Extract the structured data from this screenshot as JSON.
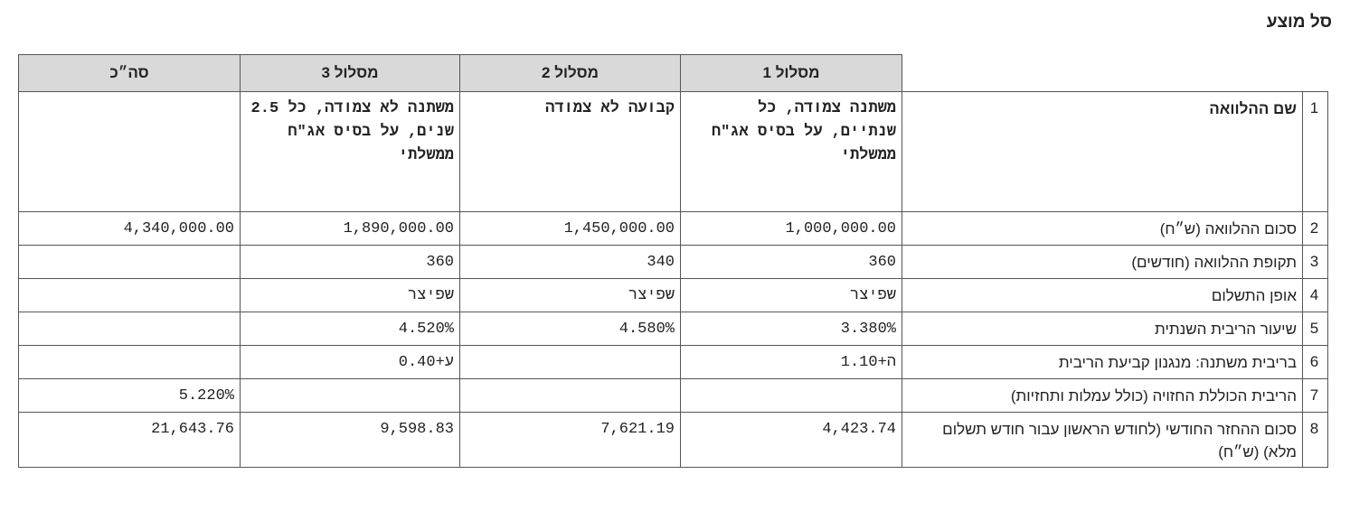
{
  "title": "סל מוצע",
  "table": {
    "headers": [
      "מסלול 1",
      "מסלול 2",
      "מסלול 3",
      "סה״כ"
    ],
    "rows": [
      {
        "num": "1",
        "label": "שם ההלוואה",
        "values": [
          "משתנה צמודה, כל שנתיים, על בסיס אג\"ח ממשלתי",
          "קבועה לא צמודה",
          "משתנה לא צמודה, כל 2.5 שנים, על בסיס אג\"ח ממשלתי",
          null
        ]
      },
      {
        "num": "2",
        "label": "סכום ההלוואה (ש״ח)",
        "values": [
          "1,000,000.00",
          "1,450,000.00",
          "1,890,000.00",
          "4,340,000.00"
        ]
      },
      {
        "num": "3",
        "label": "תקופת ההלוואה (חודשים)",
        "values": [
          "360",
          "340",
          "360",
          null
        ]
      },
      {
        "num": "4",
        "label": "אופן התשלום",
        "values": [
          "שפיצר",
          "שפיצר",
          "שפיצר",
          null
        ]
      },
      {
        "num": "5",
        "label": "שיעור הריבית השנתית",
        "values": [
          "3.380%",
          "4.580%",
          "4.520%",
          null
        ]
      },
      {
        "num": "6",
        "label": "בריבית משתנה: מנגנון קביעת הריבית",
        "values": [
          "ה+1.10",
          null,
          "ע+0.40",
          null
        ]
      },
      {
        "num": "7",
        "label": "הריבית הכוללת החזויה (כולל עמלות ותחזיות)",
        "values": [
          null,
          null,
          null,
          "5.220%"
        ]
      },
      {
        "num": "8",
        "label": "סכום ההחזר החודשי (לחודש הראשון עבור חודש תשלום מלא) (ש״ח)",
        "values": [
          "4,423.74",
          "7,621.19",
          "9,598.83",
          "21,643.76"
        ]
      }
    ]
  }
}
